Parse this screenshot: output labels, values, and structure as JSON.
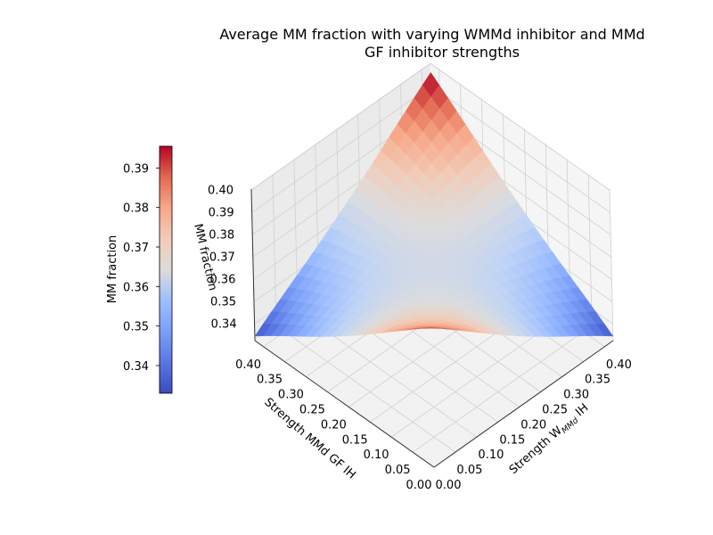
{
  "chart_data": {
    "type": "surface3d",
    "title_line1": "Average MM fraction with varying WMMd inhibitor and MMd",
    "title_line2": "GF inhibitor strengths",
    "x_axis": {
      "label_prefix": "Strength W",
      "label_subscript": "MMd",
      "label_suffix": " IH",
      "range": [
        0.0,
        0.42
      ],
      "ticks": [
        0.0,
        0.05,
        0.1,
        0.15,
        0.2,
        0.25,
        0.3,
        0.35,
        0.4
      ],
      "tick_labels": [
        "0.00",
        "0.05",
        "0.10",
        "0.15",
        "0.20",
        "0.25",
        "0.30",
        "0.35",
        "0.40"
      ]
    },
    "y_axis": {
      "label": "Strength MMd GF IH",
      "range": [
        0.0,
        0.42
      ],
      "ticks": [
        0.0,
        0.05,
        0.1,
        0.15,
        0.2,
        0.25,
        0.3,
        0.35,
        0.4
      ],
      "tick_labels": [
        "0.00",
        "0.05",
        "0.10",
        "0.15",
        "0.20",
        "0.25",
        "0.30",
        "0.35",
        "0.40"
      ]
    },
    "z_axis": {
      "label": "MM fraction",
      "range": [
        0.3325,
        0.4005
      ],
      "ticks": [
        0.34,
        0.35,
        0.36,
        0.37,
        0.38,
        0.39,
        0.4
      ],
      "tick_labels": [
        "0.34",
        "0.35",
        "0.36",
        "0.37",
        "0.38",
        "0.39",
        "0.40"
      ]
    },
    "surface": {
      "x_values": [
        0.0,
        0.42
      ],
      "y_values": [
        0.0,
        0.42
      ],
      "z_at_x0_y0": 0.395,
      "z_at_xmax_ymax": 0.396,
      "z_at_xmax_y0": 0.3345,
      "z_at_x0_ymax": 0.3345,
      "z_min_along_diagonal": 0.3345,
      "grid_steps": 21
    },
    "colorbar": {
      "label": "MM fraction",
      "range": [
        0.333,
        0.3955
      ],
      "ticks": [
        0.34,
        0.35,
        0.36,
        0.37,
        0.38,
        0.39
      ],
      "tick_labels": [
        "0.34",
        "0.35",
        "0.36",
        "0.37",
        "0.38",
        "0.39"
      ]
    },
    "colormap": "coolwarm",
    "grid": true
  }
}
